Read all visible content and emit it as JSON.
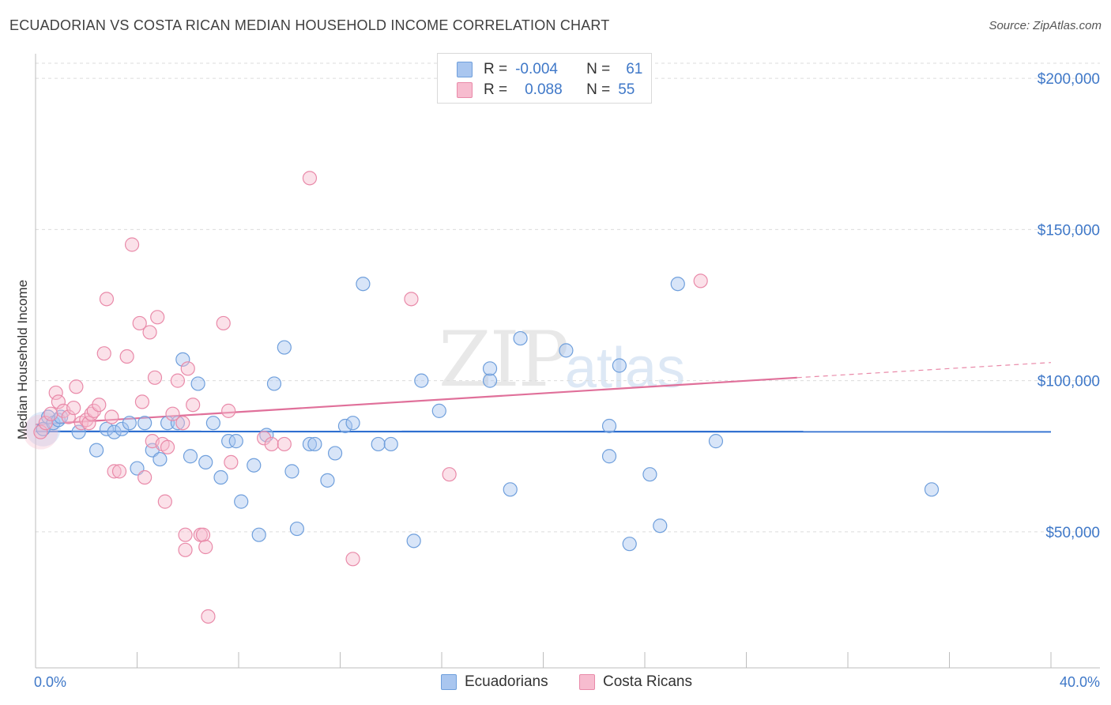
{
  "title": "ECUADORIAN VS COSTA RICAN MEDIAN HOUSEHOLD INCOME CORRELATION CHART",
  "source": "Source: ZipAtlas.com",
  "watermark": {
    "zip": "ZIP",
    "atlas": "atlas"
  },
  "legend": {
    "rows": [
      {
        "r_label": "R =",
        "r_value": "-0.004",
        "n_label": "N =",
        "n_value": "61",
        "color": "#a9c6ef",
        "border": "#6f9fdc"
      },
      {
        "r_label": "R =",
        "r_value": "0.088",
        "n_label": "N =",
        "n_value": "55",
        "color": "#f7bccf",
        "border": "#e98aa9"
      }
    ]
  },
  "bottom_legend": [
    {
      "label": "Ecuadorians",
      "color": "#a9c6ef",
      "border": "#6f9fdc"
    },
    {
      "label": "Costa Ricans",
      "color": "#f7bccf",
      "border": "#e98aa9"
    }
  ],
  "chart_data": {
    "type": "scatter",
    "title": "ECUADORIAN VS COSTA RICAN MEDIAN HOUSEHOLD INCOME CORRELATION CHART",
    "xlabel": "",
    "ylabel": "Median Household Income",
    "xlim": [
      0,
      40
    ],
    "ylim": [
      5000,
      205000
    ],
    "x_tick_labels": [
      "0.0%",
      "40.0%"
    ],
    "y_ticks": [
      50000,
      100000,
      150000,
      200000
    ],
    "y_tick_labels": [
      "$50,000",
      "$100,000",
      "$150,000",
      "$200,000"
    ],
    "grid": "horizontal dashed",
    "legend_position": "top-center",
    "series": [
      {
        "name": "Ecuadorians",
        "color": "#6f9fdc",
        "fill": "#a9c6ef",
        "trend": {
          "x": [
            0,
            40
          ],
          "y": [
            83200,
            83100
          ]
        },
        "points": [
          [
            0.3,
            84000
          ],
          [
            0.5,
            88000
          ],
          [
            0.7,
            86000
          ],
          [
            0.9,
            87000
          ],
          [
            1.0,
            88000
          ],
          [
            1.7,
            83000
          ],
          [
            2.4,
            77000
          ],
          [
            2.8,
            84000
          ],
          [
            3.1,
            83000
          ],
          [
            3.4,
            84000
          ],
          [
            3.7,
            86000
          ],
          [
            4.0,
            71000
          ],
          [
            4.3,
            86000
          ],
          [
            4.6,
            77000
          ],
          [
            4.9,
            74000
          ],
          [
            5.2,
            86000
          ],
          [
            5.6,
            86000
          ],
          [
            5.8,
            107000
          ],
          [
            6.1,
            75000
          ],
          [
            6.4,
            99000
          ],
          [
            6.7,
            73000
          ],
          [
            7.0,
            86000
          ],
          [
            7.3,
            68000
          ],
          [
            7.6,
            80000
          ],
          [
            7.9,
            80000
          ],
          [
            8.1,
            60000
          ],
          [
            8.6,
            72000
          ],
          [
            8.8,
            49000
          ],
          [
            9.1,
            82000
          ],
          [
            9.4,
            99000
          ],
          [
            9.8,
            111000
          ],
          [
            10.1,
            70000
          ],
          [
            10.3,
            51000
          ],
          [
            10.8,
            79000
          ],
          [
            11.0,
            79000
          ],
          [
            11.5,
            67000
          ],
          [
            11.8,
            76000
          ],
          [
            12.2,
            85000
          ],
          [
            12.5,
            86000
          ],
          [
            12.9,
            132000
          ],
          [
            13.5,
            79000
          ],
          [
            14.0,
            79000
          ],
          [
            14.9,
            47000
          ],
          [
            15.2,
            100000
          ],
          [
            15.9,
            90000
          ],
          [
            17.9,
            100000
          ],
          [
            17.9,
            104000
          ],
          [
            18.7,
            64000
          ],
          [
            19.1,
            114000
          ],
          [
            20.9,
            110000
          ],
          [
            22.6,
            85000
          ],
          [
            22.6,
            75000
          ],
          [
            23.0,
            105000
          ],
          [
            23.4,
            46000
          ],
          [
            24.2,
            69000
          ],
          [
            24.6,
            52000
          ],
          [
            25.3,
            132000
          ],
          [
            26.8,
            80000
          ],
          [
            35.3,
            64000
          ]
        ]
      },
      {
        "name": "Costa Ricans",
        "color": "#e98aa9",
        "fill": "#f7bccf",
        "trend": {
          "x": [
            0,
            30
          ],
          "y": [
            85500,
            101000
          ]
        },
        "trend_extension": {
          "x": [
            30,
            40
          ],
          "y": [
            101000,
            106000
          ]
        },
        "points": [
          [
            0.2,
            83000
          ],
          [
            0.4,
            86000
          ],
          [
            0.6,
            89000
          ],
          [
            0.8,
            96000
          ],
          [
            0.9,
            93000
          ],
          [
            1.1,
            90000
          ],
          [
            1.3,
            88000
          ],
          [
            1.5,
            91000
          ],
          [
            1.6,
            98000
          ],
          [
            1.8,
            86000
          ],
          [
            2.0,
            87000
          ],
          [
            2.1,
            86000
          ],
          [
            2.2,
            89000
          ],
          [
            2.3,
            90000
          ],
          [
            2.5,
            92000
          ],
          [
            2.7,
            109000
          ],
          [
            2.8,
            127000
          ],
          [
            3.0,
            88000
          ],
          [
            3.1,
            70000
          ],
          [
            3.3,
            70000
          ],
          [
            3.6,
            108000
          ],
          [
            3.8,
            145000
          ],
          [
            4.1,
            119000
          ],
          [
            4.2,
            93000
          ],
          [
            4.3,
            68000
          ],
          [
            4.5,
            116000
          ],
          [
            4.6,
            80000
          ],
          [
            4.7,
            101000
          ],
          [
            4.8,
            121000
          ],
          [
            5.0,
            79000
          ],
          [
            5.1,
            60000
          ],
          [
            5.2,
            78000
          ],
          [
            5.4,
            89000
          ],
          [
            5.6,
            100000
          ],
          [
            5.8,
            86000
          ],
          [
            5.9,
            49000
          ],
          [
            5.9,
            44000
          ],
          [
            6.0,
            104000
          ],
          [
            6.2,
            92000
          ],
          [
            6.5,
            49000
          ],
          [
            6.6,
            49000
          ],
          [
            6.7,
            45000
          ],
          [
            6.8,
            22000
          ],
          [
            7.4,
            119000
          ],
          [
            7.6,
            90000
          ],
          [
            7.7,
            73000
          ],
          [
            9.0,
            81000
          ],
          [
            9.3,
            79000
          ],
          [
            9.8,
            79000
          ],
          [
            10.8,
            167000
          ],
          [
            12.5,
            41000
          ],
          [
            14.8,
            127000
          ],
          [
            16.3,
            69000
          ],
          [
            26.2,
            133000
          ]
        ]
      }
    ]
  }
}
